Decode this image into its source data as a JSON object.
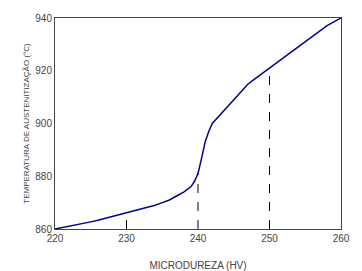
{
  "chart_data": {
    "type": "line",
    "xlabel": "MICRODUREZA (HV)",
    "ylabel": "TEMPERATURA DE AUSTENITIZAÇÃO (°C)",
    "xlim": [
      220,
      260
    ],
    "ylim": [
      860,
      940
    ],
    "xticks": [
      220,
      230,
      240,
      250,
      260
    ],
    "yticks": [
      860,
      880,
      900,
      920,
      940
    ],
    "grid": false,
    "x": [
      220,
      221,
      222,
      223,
      224,
      225,
      226,
      227,
      228,
      229,
      230,
      231,
      232,
      233,
      234,
      235,
      236,
      237,
      238,
      239,
      239.5,
      240.0,
      240.3,
      240.6,
      241.0,
      241.5,
      242,
      243,
      244,
      245,
      246,
      247,
      248,
      249,
      250,
      251,
      252,
      253,
      254,
      255,
      256,
      257,
      258,
      259,
      260
    ],
    "series": [
      {
        "color": "#00008B",
        "values": [
          860,
          860.5,
          861,
          861.5,
          862,
          862.7,
          863.3,
          864,
          864.7,
          865.3,
          866,
          866.8,
          867.5,
          868.2,
          869,
          870,
          871,
          872.5,
          874,
          876,
          878,
          881,
          884,
          888,
          893,
          897,
          900,
          903,
          906,
          909,
          912,
          915,
          917,
          919,
          921,
          923,
          925,
          927,
          929,
          931,
          933,
          935,
          937,
          938.5,
          940
        ]
      }
    ],
    "vlines": [
      {
        "x": 230,
        "y": 866,
        "color": "#000000",
        "line_style": "dashed"
      },
      {
        "x": 240,
        "y": 881,
        "color": "#000000",
        "line_style": "dashed"
      },
      {
        "x": 250,
        "y": 921,
        "color": "#000000",
        "line_style": "dashed"
      }
    ]
  }
}
